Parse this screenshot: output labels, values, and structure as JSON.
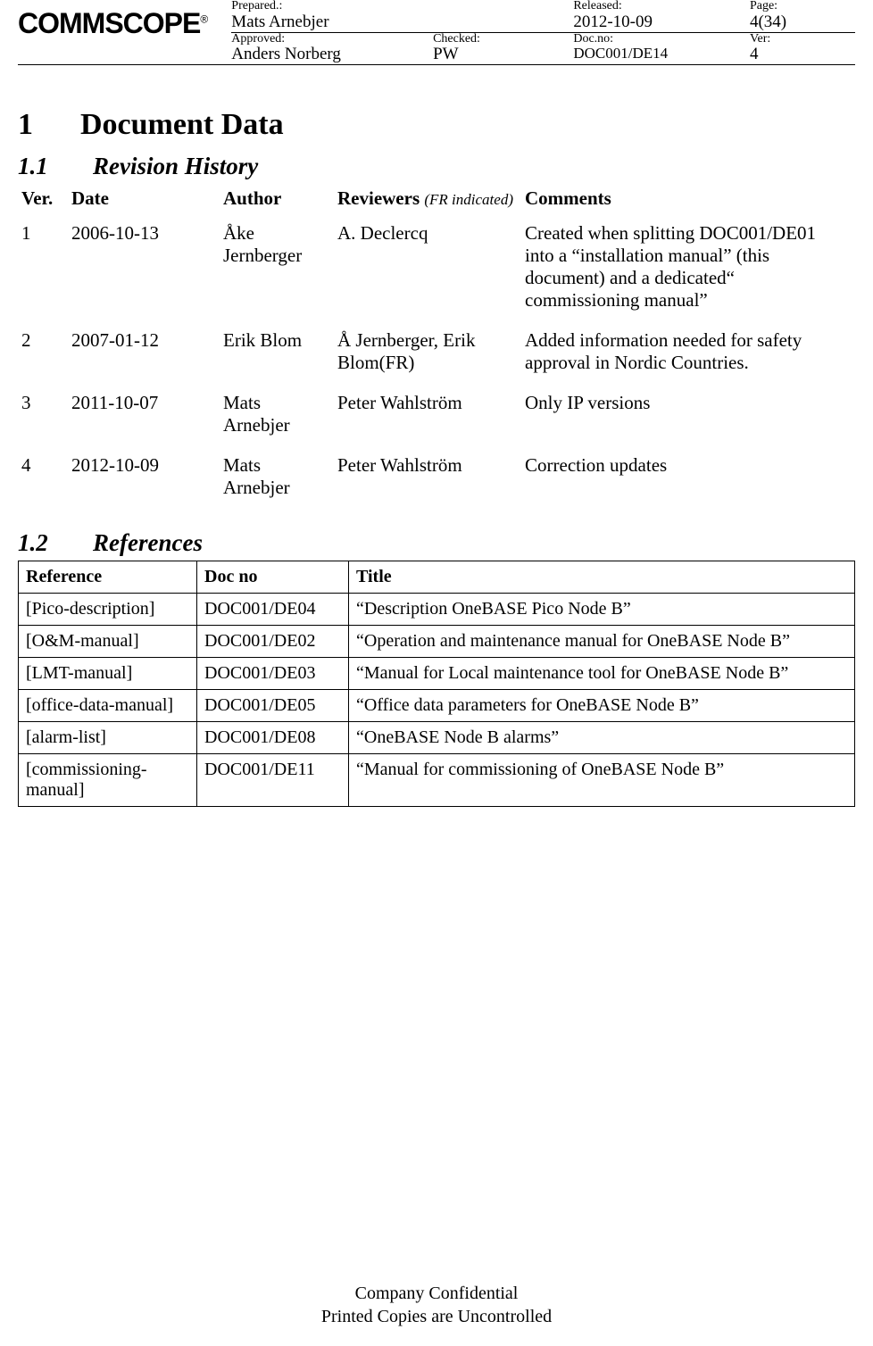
{
  "header": {
    "logo_text": "COMMSCOPE",
    "logo_reg": "®",
    "row1": {
      "prepared_label": "Prepared.:",
      "prepared_value": "Mats Arnebjer",
      "released_label": "Released:",
      "released_value": "2012-10-09",
      "page_label": "Page:",
      "page_value": "4(34)"
    },
    "row2": {
      "approved_label": "Approved:",
      "approved_value": "Anders Norberg",
      "checked_label": "Checked:",
      "checked_value": "PW",
      "docno_label": "Doc.no:",
      "docno_value": "DOC001/DE14",
      "ver_label": "Ver:",
      "ver_value": "4"
    }
  },
  "section1": {
    "num": "1",
    "title": "Document Data"
  },
  "section11": {
    "num": "1.1",
    "title": "Revision History"
  },
  "revhist": {
    "columns": {
      "ver": "Ver.",
      "date": "Date",
      "author": "Author",
      "reviewers": "Reviewers",
      "reviewers_note": "(FR indicated)",
      "comments": "Comments"
    },
    "rows": [
      {
        "ver": "1",
        "date": "2006-10-13",
        "author": "Åke Jernberger",
        "reviewers": "A. Declercq",
        "comments": "Created when splitting DOC001/DE01 into a “installation manual” (this document) and a dedicated“ commissioning manual”"
      },
      {
        "ver": "2",
        "date": "2007-01-12",
        "author": "Erik Blom",
        "reviewers": "Å Jernberger, Erik Blom(FR)",
        "comments": "Added information needed for safety approval in Nordic Countries."
      },
      {
        "ver": "3",
        "date": "2011-10-07",
        "author": "Mats Arnebjer",
        "reviewers": "Peter Wahlström",
        "comments": "Only IP versions"
      },
      {
        "ver": "4",
        "date": "2012-10-09",
        "author": "Mats Arnebjer",
        "reviewers": "Peter Wahlström",
        "comments": "Correction updates"
      }
    ]
  },
  "section12": {
    "num": "1.2",
    "title": "References"
  },
  "refs": {
    "columns": {
      "reference": "Reference",
      "docno": "Doc no",
      "title": "Title"
    },
    "rows": [
      {
        "reference": "[Pico-description]",
        "docno": "DOC001/DE04",
        "title": "“Description OneBASE Pico Node B”"
      },
      {
        "reference": "[O&M-manual]",
        "docno": "DOC001/DE02",
        "title": "“Operation and maintenance manual for OneBASE Node B”"
      },
      {
        "reference": "[LMT-manual]",
        "docno": "DOC001/DE03",
        "title": "“Manual for Local maintenance tool for OneBASE Node B”"
      },
      {
        "reference": "[office-data-manual]",
        "docno": "DOC001/DE05",
        "title": "“Office data parameters for OneBASE Node B”"
      },
      {
        "reference": "[alarm-list]",
        "docno": "DOC001/DE08",
        "title": "“OneBASE Node B alarms”"
      },
      {
        "reference": "[commissioning-manual]",
        "docno": "DOC001/DE11",
        "title": "“Manual for commissioning of OneBASE Node B”"
      }
    ]
  },
  "footer": {
    "line1": "Company Confidential",
    "line2": "Printed Copies are Uncontrolled"
  }
}
